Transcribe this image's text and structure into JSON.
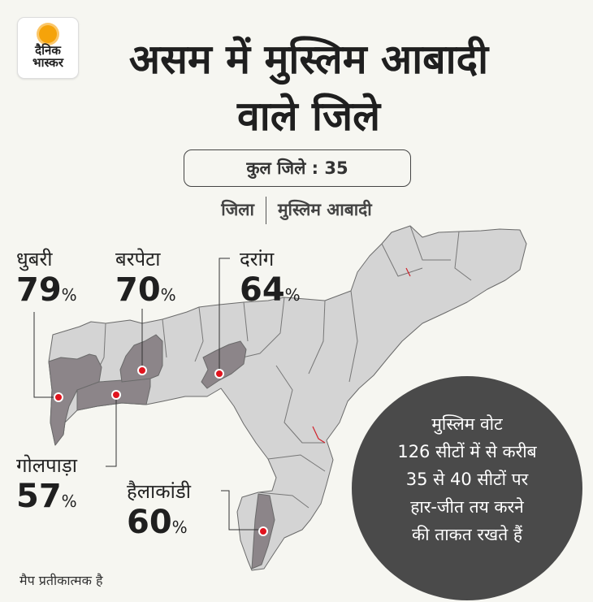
{
  "logo": {
    "line1": "दैनिक",
    "line2": "भास्कर"
  },
  "title": "असम में मुस्लिम आबादी वाले जिले",
  "total_districts": "कुल जिले : 35",
  "legend": {
    "district": "जिला",
    "population": "मुस्लिम आबादी"
  },
  "districts": [
    {
      "name": "धुबरी",
      "percent": "79",
      "unit": "%"
    },
    {
      "name": "बरपेटा",
      "percent": "70",
      "unit": "%"
    },
    {
      "name": "दरांग",
      "percent": "64",
      "unit": "%"
    },
    {
      "name": "गोलपाड़ा",
      "percent": "57",
      "unit": "%"
    },
    {
      "name": "हैलाकांडी",
      "percent": "60",
      "unit": "%"
    }
  ],
  "bubble_lines": [
    "मुस्लिम वोट",
    "126 सीटों में से करीब",
    "35 से 40 सीटों पर",
    "हार-जीत तय करने",
    "की ताकत रखते हैं"
  ],
  "note": "मैप प्रतीकात्मक है",
  "colors": {
    "map_fill": "#d4d4d4",
    "highlight_fill": "#8c8589",
    "marker": "#e0141e",
    "bubble": "#4a4a4a",
    "background": "#f6f6f1"
  }
}
